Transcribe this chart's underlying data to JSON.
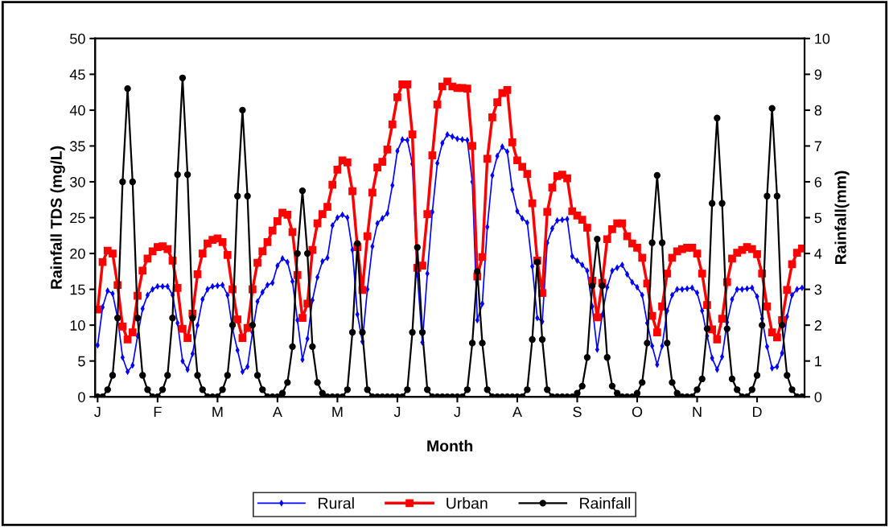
{
  "chart_data": {
    "type": "line",
    "xlabel": "Month",
    "ylabel": "Rainfall TDS (mg/L)",
    "y2label": "Rainfall(mm)",
    "categories": [
      "J",
      null,
      null,
      null,
      null,
      null,
      null,
      null,
      null,
      null,
      null,
      null,
      "F",
      null,
      null,
      null,
      null,
      null,
      null,
      null,
      null,
      null,
      null,
      null,
      "M",
      null,
      null,
      null,
      null,
      null,
      null,
      null,
      null,
      null,
      null,
      null,
      "A",
      null,
      null,
      null,
      null,
      null,
      null,
      null,
      null,
      null,
      null,
      null,
      "M",
      null,
      null,
      null,
      null,
      null,
      null,
      null,
      null,
      null,
      null,
      null,
      "J",
      null,
      null,
      null,
      null,
      null,
      null,
      null,
      null,
      null,
      null,
      null,
      "J",
      null,
      null,
      null,
      null,
      null,
      null,
      null,
      null,
      null,
      null,
      null,
      "A",
      null,
      null,
      null,
      null,
      null,
      null,
      null,
      null,
      null,
      null,
      null,
      "S",
      null,
      null,
      null,
      null,
      null,
      null,
      null,
      null,
      null,
      null,
      null,
      "O",
      null,
      null,
      null,
      null,
      null,
      null,
      null,
      null,
      null,
      null,
      null,
      "N",
      null,
      null,
      null,
      null,
      null,
      null,
      null,
      null,
      null,
      null,
      null,
      "D",
      null,
      null,
      null,
      null,
      null,
      null,
      null,
      null,
      null
    ],
    "ylim": [
      0,
      50
    ],
    "yticks": [
      0,
      5,
      10,
      15,
      20,
      25,
      30,
      35,
      40,
      45,
      50
    ],
    "y2lim": [
      0,
      10
    ],
    "y2ticks": [
      0,
      1,
      2,
      3,
      4,
      5,
      6,
      7,
      8,
      9,
      10
    ],
    "legend": "bottom",
    "grid": false,
    "line_style": "solid",
    "series": [
      {
        "name": "Rural",
        "color": "#0000ff",
        "marker": "diamond",
        "values": [
          7.2,
          12.5,
          14.8,
          14.4,
          11.0,
          5.5,
          3.5,
          4.4,
          8.5,
          12.3,
          14.2,
          15.0,
          15.4,
          15.4,
          15.4,
          14.2,
          10.3,
          5.0,
          3.8,
          6.0,
          10.0,
          13.6,
          15.0,
          15.4,
          15.5,
          15.6,
          14.2,
          9.5,
          6.5,
          3.5,
          4.2,
          9.0,
          13.3,
          14.6,
          15.6,
          15.9,
          18.3,
          19.3,
          18.8,
          16.1,
          10.7,
          5.2,
          8.1,
          13.5,
          16.7,
          18.9,
          19.4,
          23.9,
          25.0,
          25.4,
          25.0,
          20.5,
          11.5,
          7.7,
          15.0,
          21.0,
          24.2,
          24.9,
          25.6,
          29.5,
          34.3,
          35.9,
          35.8,
          32.5,
          17.0,
          7.6,
          17.2,
          25.8,
          32.6,
          35.4,
          36.6,
          36.3,
          36.0,
          35.9,
          35.8,
          30.0,
          10.7,
          13.0,
          23.7,
          30.9,
          33.6,
          34.9,
          34.2,
          28.9,
          25.9,
          24.9,
          24.3,
          18.2,
          11.0,
          10.5,
          21.5,
          23.5,
          24.6,
          24.7,
          24.8,
          19.6,
          19.0,
          18.4,
          17.6,
          12.6,
          6.6,
          11.4,
          15.3,
          17.6,
          18.0,
          18.4,
          17.1,
          16.0,
          15.3,
          14.2,
          10.3,
          7.1,
          4.5,
          7.1,
          12.0,
          14.2,
          15.0,
          15.0,
          15.1,
          15.2,
          14.5,
          12.0,
          8.5,
          5.4,
          3.8,
          5.6,
          10.4,
          13.6,
          15.0,
          15.0,
          15.1,
          15.2,
          14.0,
          10.9,
          7.0,
          4.0,
          4.2,
          6.1,
          11.2,
          14.2,
          15.0,
          15.2
        ]
      },
      {
        "name": "Urban",
        "color": "#ff0000",
        "marker": "square",
        "values": [
          12.2,
          18.8,
          20.4,
          20.0,
          15.6,
          9.8,
          8.0,
          9.0,
          14.1,
          17.6,
          19.3,
          20.3,
          20.9,
          21.0,
          20.6,
          19.0,
          15.2,
          9.5,
          8.2,
          11.6,
          17.1,
          20.0,
          21.4,
          21.9,
          22.1,
          21.6,
          19.8,
          15.0,
          10.8,
          8.2,
          9.6,
          15.0,
          18.7,
          20.3,
          21.6,
          23.2,
          24.5,
          25.7,
          25.4,
          23.0,
          17.0,
          11.0,
          13.0,
          20.5,
          24.2,
          25.5,
          26.5,
          29.6,
          31.7,
          33.0,
          32.7,
          28.7,
          20.9,
          14.9,
          22.4,
          28.5,
          32.0,
          32.8,
          34.5,
          38.0,
          41.8,
          43.6,
          43.6,
          36.6,
          18.0,
          18.3,
          25.5,
          33.7,
          40.8,
          43.3,
          44.0,
          43.3,
          43.1,
          43.1,
          43.0,
          35.0,
          16.8,
          19.5,
          33.2,
          39.0,
          41.1,
          42.4,
          42.8,
          35.5,
          33.0,
          32.1,
          31.1,
          27.0,
          19.0,
          14.5,
          25.8,
          29.2,
          30.8,
          31.0,
          30.5,
          25.9,
          25.3,
          24.7,
          23.6,
          16.2,
          11.1,
          15.9,
          22.0,
          23.4,
          24.2,
          24.2,
          22.4,
          21.4,
          20.8,
          19.4,
          15.8,
          11.3,
          9.0,
          12.6,
          17.2,
          19.4,
          20.3,
          20.6,
          20.8,
          20.8,
          20.0,
          17.2,
          12.8,
          9.4,
          8.0,
          10.9,
          16.0,
          19.3,
          20.1,
          20.5,
          20.9,
          20.6,
          19.9,
          17.2,
          12.6,
          9.0,
          8.3,
          10.7,
          14.9,
          18.5,
          20.1,
          20.7
        ]
      },
      {
        "name": "Rainfall",
        "color": "#000000",
        "marker": "circle",
        "axis": "y2",
        "values": [
          0,
          0,
          0.2,
          0.6,
          2.2,
          6.0,
          8.6,
          6.0,
          2.2,
          0.6,
          0.2,
          0,
          0,
          0.2,
          0.6,
          2.2,
          6.2,
          8.9,
          6.2,
          2.2,
          0.6,
          0.2,
          0,
          0,
          0,
          0.2,
          0.6,
          2.0,
          5.6,
          8.0,
          5.6,
          2.0,
          0.6,
          0.2,
          0,
          0,
          0,
          0.1,
          0.4,
          1.4,
          4.0,
          5.75,
          4.0,
          1.4,
          0.4,
          0.1,
          0,
          0,
          0,
          0,
          0.2,
          1.8,
          4.28,
          1.8,
          0.2,
          0,
          0,
          0,
          0,
          0,
          0,
          0,
          0.2,
          1.8,
          4.17,
          1.8,
          0.2,
          0,
          0,
          0,
          0,
          0,
          0,
          0,
          0.2,
          1.5,
          3.5,
          1.5,
          0.2,
          0,
          0,
          0,
          0,
          0,
          0,
          0,
          0.2,
          1.6,
          3.76,
          1.6,
          0.2,
          0,
          0,
          0,
          0,
          0,
          0.1,
          0.3,
          1.1,
          3.1,
          4.4,
          3.1,
          1.1,
          0.3,
          0.1,
          0,
          0,
          0,
          0.1,
          0.4,
          1.5,
          4.3,
          6.18,
          4.3,
          1.5,
          0.4,
          0.1,
          0,
          0,
          0,
          0.2,
          0.5,
          1.9,
          5.4,
          7.78,
          5.4,
          1.9,
          0.5,
          0.2,
          0,
          0,
          0.2,
          0.6,
          2.0,
          5.6,
          8.05,
          5.6,
          2.0,
          0.6,
          0.2,
          0,
          0
        ]
      }
    ]
  }
}
